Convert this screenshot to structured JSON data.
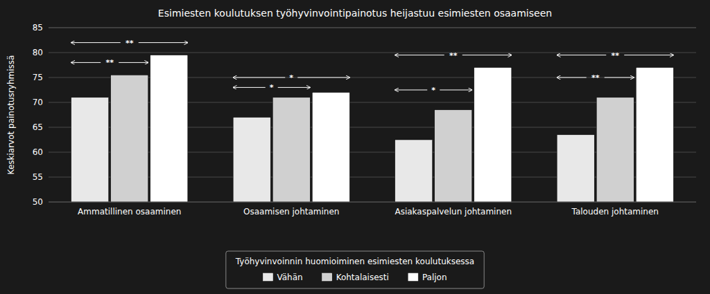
{
  "chart_data": {
    "type": "bar",
    "title": "Esimiesten koulutuksen työhyvinvointipainotus heijastuu esimiesten osaamiseen",
    "ylabel": "Keskiarvot painotusryhmissä",
    "categories": [
      "Ammatillinen osaaminen",
      "Osaamisen johtaminen",
      "Asiakaspalvelun johtaminen",
      "Talouden johtaminen"
    ],
    "series": [
      {
        "name": "Vähän",
        "color": "#e8e8e8",
        "values": [
          71.0,
          67.0,
          62.5,
          63.5
        ]
      },
      {
        "name": "Kohtalaisesti",
        "color": "#d0d0d0",
        "values": [
          75.5,
          71.0,
          68.5,
          71.0
        ]
      },
      {
        "name": "Paljon",
        "color": "#ffffff",
        "values": [
          79.5,
          72.0,
          77.0,
          77.0
        ]
      }
    ],
    "legend_title": "Työhyvinvoinnin huomioiminen esimiesten koulutuksessa",
    "legend": "bottom",
    "ylim": [
      50,
      85
    ],
    "yticks": [
      50,
      55,
      60,
      65,
      70,
      75,
      80,
      85
    ],
    "grid": true,
    "annotations": [
      {
        "text": "**",
        "y": 82.0,
        "category": "Ammatillinen osaaminen",
        "series": [
          "Vähän",
          "Paljon"
        ]
      },
      {
        "text": "**",
        "y": 78.0,
        "category": "Ammatillinen osaaminen",
        "series": [
          "Vähän",
          "Kohtalaisesti"
        ]
      },
      {
        "text": "*",
        "y": 75.0,
        "category": "Osaamisen johtaminen",
        "series": [
          "Vähän",
          "Paljon"
        ]
      },
      {
        "text": "*",
        "y": 73.0,
        "category": "Osaamisen johtaminen",
        "series": [
          "Vähän",
          "Kohtalaisesti"
        ]
      },
      {
        "text": "**",
        "y": 79.5,
        "category": "Asiakaspalvelun johtaminen",
        "series": [
          "Vähän",
          "Paljon"
        ]
      },
      {
        "text": "*",
        "y": 72.5,
        "category": "Asiakaspalvelun johtaminen",
        "series": [
          "Vähän",
          "Kohtalaisesti"
        ]
      },
      {
        "text": "**",
        "y": 79.5,
        "category": "Talouden johtaminen",
        "series": [
          "Vähän",
          "Paljon"
        ]
      },
      {
        "text": "**",
        "y": 75.0,
        "category": "Talouden johtaminen",
        "series": [
          "Vähän",
          "Kohtalaisesti"
        ]
      }
    ]
  }
}
